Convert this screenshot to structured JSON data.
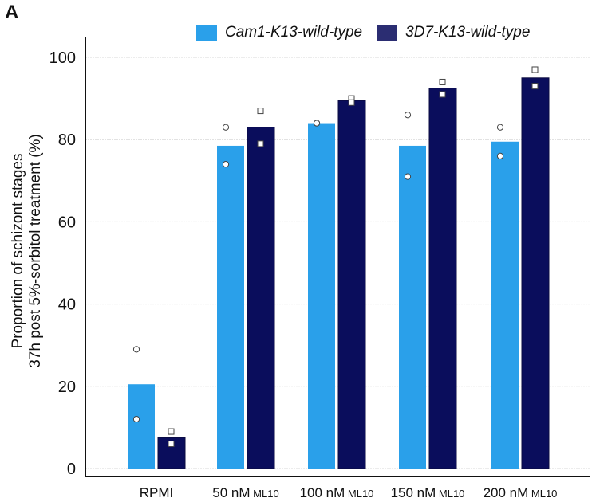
{
  "panel_label": "A",
  "colors": {
    "series1": "#2aa0ea",
    "series2": "#0a0d5c",
    "axis": "#111111",
    "grid": "#d9d9d9"
  },
  "chart_data": {
    "type": "bar",
    "categories": [
      "RPMI",
      "50 nM",
      "100 nM",
      "150 nM",
      "200 nM"
    ],
    "category_suffix": "ML10",
    "series": [
      {
        "name": "Cam1-K13-wild-type",
        "values": [
          20.5,
          78.5,
          84,
          78.5,
          79.5
        ],
        "replicates": [
          [
            29,
            12
          ],
          [
            83,
            74
          ],
          [
            84,
            84
          ],
          [
            86,
            71
          ],
          [
            83,
            76
          ]
        ],
        "marker": "circle"
      },
      {
        "name": "3D7-K13-wild-type",
        "values": [
          7.5,
          83,
          89.5,
          92.5,
          95
        ],
        "replicates": [
          [
            9,
            6
          ],
          [
            87,
            79
          ],
          [
            90,
            89
          ],
          [
            94,
            91
          ],
          [
            97,
            93
          ]
        ],
        "marker": "square"
      }
    ],
    "ylabel_line1": "Proportion of schizont stages",
    "ylabel_line2": "37h post 5%-sorbitol treatment (%)",
    "ylim": [
      0,
      100
    ],
    "yticks": [
      0,
      20,
      40,
      60,
      80,
      100
    ],
    "grid": true,
    "legend": "top"
  }
}
